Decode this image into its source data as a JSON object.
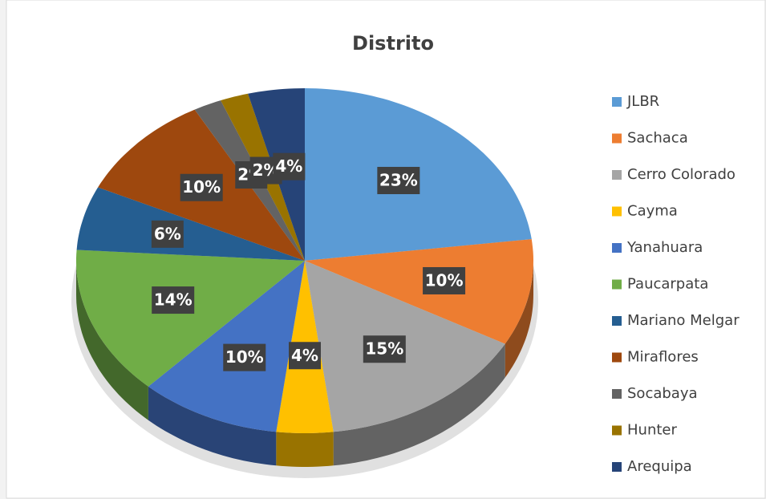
{
  "chart_data": {
    "type": "pie",
    "title": "Distrito",
    "categories": [
      "JLBR",
      "Sachaca",
      "Cerro Colorado",
      "Cayma",
      "Yanahuara",
      "Paucarpata",
      "Mariano Melgar",
      "Miraflores",
      "Socabaya",
      "Hunter",
      "Arequipa"
    ],
    "values": [
      23,
      10,
      15,
      4,
      10,
      14,
      6,
      10,
      2,
      2,
      4
    ],
    "value_labels": [
      "23%",
      "10%",
      "15%",
      "4%",
      "10%",
      "14%",
      "6%",
      "10%",
      "2%",
      "2%",
      "4%"
    ],
    "colors": [
      "#5b9bd5",
      "#ed7d31",
      "#a5a5a5",
      "#ffc000",
      "#4472c4",
      "#70ad47",
      "#255e91",
      "#9e480e",
      "#636363",
      "#997300",
      "#264478"
    ],
    "legend": "right"
  }
}
